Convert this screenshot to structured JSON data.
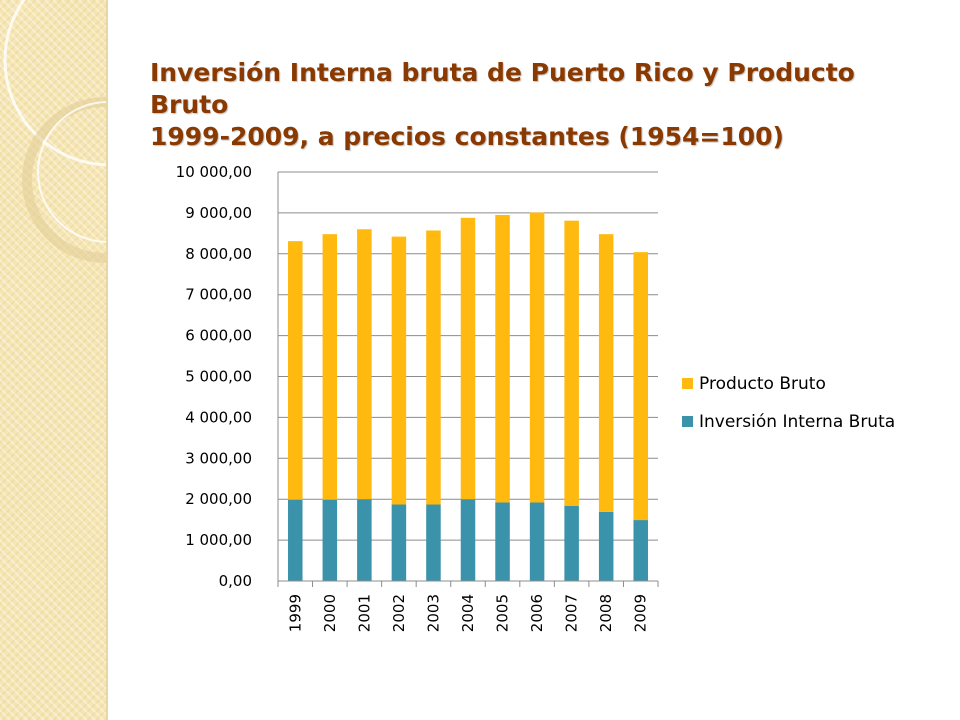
{
  "slide": {
    "title_line1": "Inversión Interna bruta de Puerto Rico y Producto Bruto",
    "title_line2": "1999-2009, a precios constantes (1954=100)"
  },
  "colors": {
    "title": "#8a3a00",
    "producto_bruto": "#FFB90F",
    "inversion": "#3A93AA",
    "gridline": "#8c8c8c",
    "side_panel": "#f6e6b4"
  },
  "chart_data": {
    "type": "bar",
    "stacked": true,
    "categories": [
      "1999",
      "2000",
      "2001",
      "2002",
      "2003",
      "2004",
      "2005",
      "2006",
      "2007",
      "2008",
      "2009"
    ],
    "series": [
      {
        "name": "Inversión Interna Bruta",
        "color": "#3A93AA",
        "values": [
          1990,
          1990,
          2000,
          1870,
          1870,
          2000,
          1920,
          1920,
          1840,
          1690,
          1490
        ]
      },
      {
        "name": "Producto Bruto",
        "color": "#FFB90F",
        "values": [
          6320,
          6490,
          6600,
          6550,
          6700,
          6880,
          7030,
          7090,
          6970,
          6790,
          6550
        ]
      }
    ],
    "ylim": [
      0,
      10000
    ],
    "yticks": [
      "0,00",
      "1 000,00",
      "2 000,00",
      "3 000,00",
      "4 000,00",
      "5 000,00",
      "6 000,00",
      "7 000,00",
      "8 000,00",
      "9 000,00",
      "10 000,00"
    ],
    "grid": true,
    "legend": "right",
    "legend_entries": [
      "Producto Bruto",
      "Inversión Interna Bruta"
    ]
  }
}
